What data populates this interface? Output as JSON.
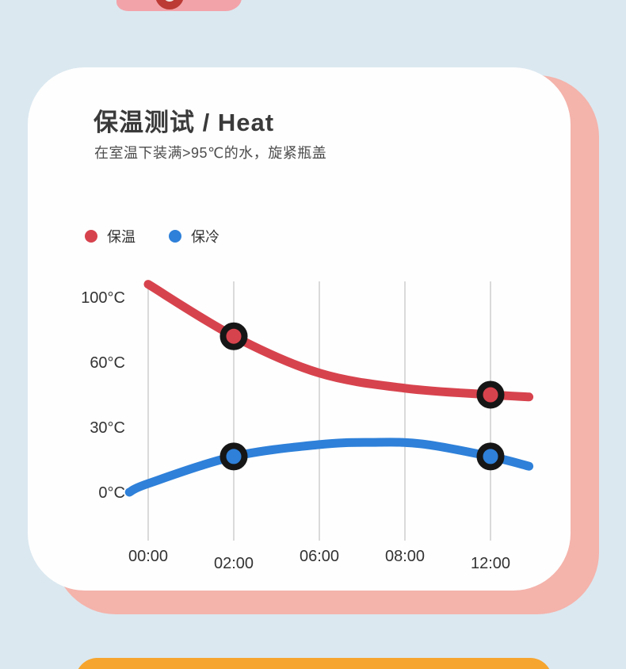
{
  "page": {
    "bg_color": "#dbe8f0",
    "card_color": "#fefefe",
    "accent_pink": "#f4b3ab",
    "bottom_strip_color": "#f6a52f"
  },
  "section": {
    "title": "保温测试 / Heat",
    "subtitle": "在室温下装满>95℃的水，旋紧瓶盖"
  },
  "legend": {
    "items": [
      {
        "label": "保温",
        "color": "#d7434d"
      },
      {
        "label": "保冷",
        "color": "#2e80d9"
      }
    ]
  },
  "chart_data": {
    "type": "line",
    "title": "保温测试 / Heat",
    "x_axis": "tick_index (ticks are times)",
    "x_tick_labels": [
      "00:00",
      "02:00",
      "06:00",
      "08:00",
      "12:00"
    ],
    "x_tick_label_offsets": [
      0,
      9,
      0,
      0,
      9
    ],
    "y_tick_labels": [
      "100°C",
      "60°C",
      "30°C",
      "0°C"
    ],
    "y_tick_values": [
      100,
      60,
      30,
      0
    ],
    "grid": true,
    "legend_position": "top-left",
    "marker_style": {
      "ring_color": "#161616",
      "inner_radius": 13.5,
      "ring_width": 8
    },
    "line_width": 11,
    "series": [
      {
        "name": "保温",
        "color": "#d7434d",
        "points": [
          [
            0,
            108
          ],
          [
            1,
            76
          ],
          [
            2,
            55
          ],
          [
            3,
            48
          ],
          [
            4,
            45
          ],
          [
            4.45,
            44
          ]
        ],
        "markers": [
          [
            1,
            76
          ],
          [
            4,
            45
          ]
        ]
      },
      {
        "name": "保冷",
        "color": "#2e80d9",
        "points": [
          [
            -0.22,
            0
          ],
          [
            0,
            4
          ],
          [
            1,
            16.5
          ],
          [
            2,
            22
          ],
          [
            2.6,
            23
          ],
          [
            3.2,
            22.3
          ],
          [
            4,
            16.5
          ],
          [
            4.45,
            12
          ]
        ],
        "markers": [
          [
            1,
            16.5
          ],
          [
            4,
            16.5
          ]
        ]
      }
    ]
  }
}
